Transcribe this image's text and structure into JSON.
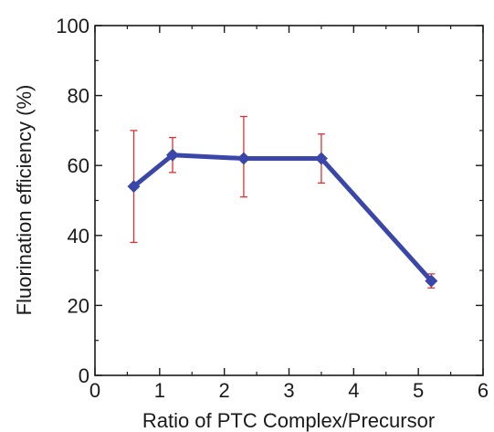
{
  "chart_data": {
    "type": "line",
    "title": "",
    "xlabel": "Ratio of PTC Complex/Precursor",
    "ylabel": "Fluorination efficiency (%)",
    "xlim": [
      0,
      6
    ],
    "ylim": [
      0,
      100
    ],
    "x_ticks": [
      "0",
      "1",
      "2",
      "3",
      "4",
      "5",
      "6"
    ],
    "y_ticks": [
      "0",
      "20",
      "40",
      "60",
      "80",
      "100"
    ],
    "grid": false,
    "legend": "none",
    "series": [
      {
        "x": [
          0.6,
          1.2,
          2.3,
          3.5,
          5.2
        ],
        "y": [
          54,
          63,
          62,
          62,
          27
        ],
        "error_low": [
          38,
          58,
          51,
          55,
          25
        ],
        "error_high": [
          70,
          68,
          74,
          69,
          29
        ],
        "line_color": "#3a47a8",
        "marker": "diamond",
        "error_color": "#e03030"
      }
    ]
  }
}
